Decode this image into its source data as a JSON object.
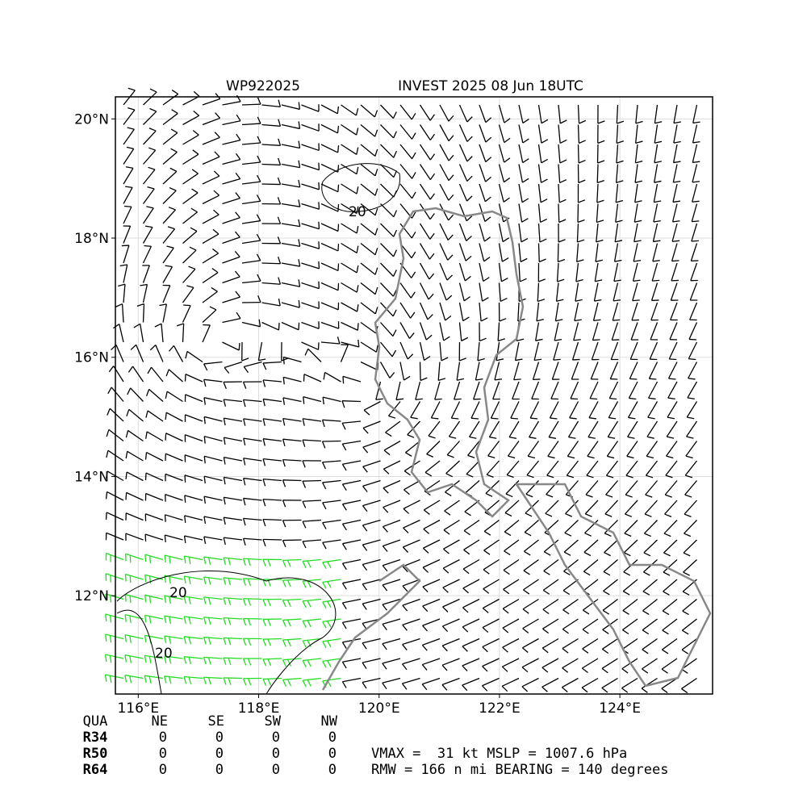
{
  "header": {
    "storm_id": "WP922025",
    "title": "INVEST 2025 08 Jun 18UTC"
  },
  "map": {
    "xlim": [
      115.62,
      125.54
    ],
    "ylim": [
      10.35,
      20.37
    ],
    "xticks": [
      {
        "value": 116,
        "label": "116°E"
      },
      {
        "value": 118,
        "label": "118°E"
      },
      {
        "value": 120,
        "label": "120°E"
      },
      {
        "value": 122,
        "label": "122°E"
      },
      {
        "value": 124,
        "label": "124°E"
      }
    ],
    "yticks": [
      {
        "value": 12,
        "label": "12°N"
      },
      {
        "value": 14,
        "label": "14°N"
      },
      {
        "value": 16,
        "label": "16°N"
      },
      {
        "value": 18,
        "label": "18°N"
      },
      {
        "value": 20,
        "label": "20°N"
      }
    ],
    "contour_labels": [
      "20",
      "20",
      "20"
    ]
  },
  "table": {
    "header": [
      "QUA",
      "NE",
      "SE",
      "SW",
      "NW"
    ],
    "rows": [
      [
        "R34",
        0,
        0,
        0,
        0
      ],
      [
        "R50",
        0,
        0,
        0,
        0
      ],
      [
        "R64",
        0,
        0,
        0,
        0
      ]
    ]
  },
  "stats": [
    "VMAX =  31 kt MSLP = 1007.6 hPa",
    "RMW = 166 n mi BEARING = 140 degrees"
  ]
}
